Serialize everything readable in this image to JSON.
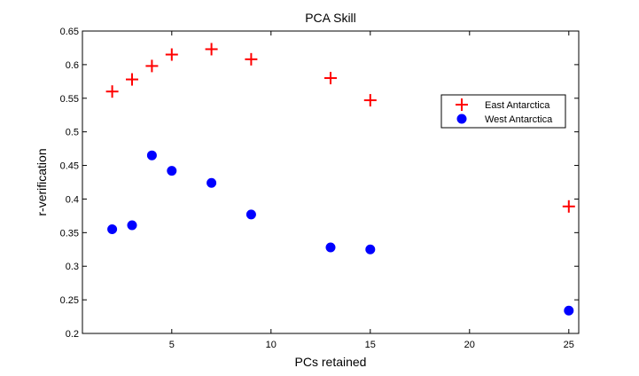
{
  "chart_data": {
    "type": "scatter",
    "title": "PCA Skill",
    "xlabel": "PCs retained",
    "ylabel": "r-verification",
    "xlim": [
      0.5,
      25.5
    ],
    "ylim": [
      0.2,
      0.65
    ],
    "xticks": [
      5,
      10,
      15,
      20,
      25
    ],
    "yticks": [
      0.2,
      0.25,
      0.3,
      0.35,
      0.4,
      0.45,
      0.5,
      0.55,
      0.6,
      0.65
    ],
    "xtick_labels": [
      "5",
      "10",
      "15",
      "20",
      "25"
    ],
    "ytick_labels": [
      "0.2",
      "0.25",
      "0.3",
      "0.35",
      "0.4",
      "0.45",
      "0.5",
      "0.55",
      "0.6",
      "0.65"
    ],
    "grid": false,
    "legend_position": "upper-right",
    "series": [
      {
        "name": "East Antarctica",
        "marker": "plus",
        "color": "#ff0000",
        "x": [
          2,
          3,
          4,
          5,
          7,
          9,
          13,
          15,
          25
        ],
        "y": [
          0.56,
          0.578,
          0.598,
          0.615,
          0.623,
          0.608,
          0.58,
          0.547,
          0.389
        ]
      },
      {
        "name": "West Antarctica",
        "marker": "circle",
        "color": "#0000ff",
        "x": [
          2,
          3,
          4,
          5,
          7,
          9,
          13,
          15,
          25
        ],
        "y": [
          0.355,
          0.361,
          0.465,
          0.442,
          0.424,
          0.377,
          0.328,
          0.325,
          0.234
        ]
      }
    ]
  }
}
